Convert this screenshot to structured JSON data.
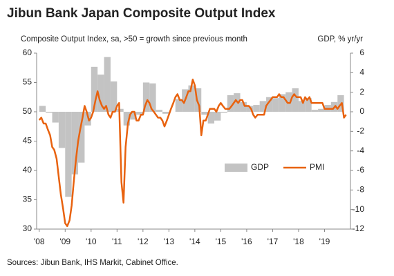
{
  "chart_data": {
    "type": "bar-line",
    "title": "Jibun Bank Japan Composite Output Index",
    "ylabel": "Composite Output Index, sa, >50 = growth since previous month",
    "y2label": "GDP, % yr/yr",
    "source": "Sources: Jibun Bank, IHS Markit, Cabinet Office.",
    "xlim": [
      2007.9,
      2020.0
    ],
    "xticks": [
      {
        "value": 2008,
        "label": "'08"
      },
      {
        "value": 2009,
        "label": "'09"
      },
      {
        "value": 2010,
        "label": "'10"
      },
      {
        "value": 2011,
        "label": "'11"
      },
      {
        "value": 2012,
        "label": "'12"
      },
      {
        "value": 2013,
        "label": "'13"
      },
      {
        "value": 2014,
        "label": "'14"
      },
      {
        "value": 2015,
        "label": "'15"
      },
      {
        "value": 2016,
        "label": "'16"
      },
      {
        "value": 2017,
        "label": "'17"
      },
      {
        "value": 2018,
        "label": "'18"
      },
      {
        "value": 2019,
        "label": "'19"
      }
    ],
    "ylim": [
      30,
      60
    ],
    "yticks": [
      30,
      35,
      40,
      45,
      50,
      55,
      60
    ],
    "y2lim": [
      -12,
      6
    ],
    "y2ticks": [
      -12,
      -10,
      -8,
      -6,
      -4,
      -2,
      0,
      2,
      4,
      6
    ],
    "legend": "right",
    "series": [
      {
        "name": "GDP",
        "color": "#c3c3c3",
        "kind": "bar",
        "axis": "y2",
        "x": [
          2008.125,
          2008.375,
          2008.625,
          2008.875,
          2009.125,
          2009.375,
          2009.625,
          2009.875,
          2010.125,
          2010.375,
          2010.625,
          2010.875,
          2011.125,
          2011.375,
          2011.625,
          2011.875,
          2012.125,
          2012.375,
          2012.625,
          2012.875,
          2013.125,
          2013.375,
          2013.625,
          2013.875,
          2014.125,
          2014.375,
          2014.625,
          2014.875,
          2015.125,
          2015.375,
          2015.625,
          2015.875,
          2016.125,
          2016.375,
          2016.625,
          2016.875,
          2017.125,
          2017.375,
          2017.625,
          2017.875,
          2018.125,
          2018.375,
          2018.625,
          2018.875,
          2019.125,
          2019.375,
          2019.625
        ],
        "values": [
          0.6,
          -0.1,
          -1.1,
          -3.7,
          -8.7,
          -6.4,
          -5.2,
          -1.4,
          4.6,
          3.8,
          5.6,
          3.1,
          0.3,
          -1.4,
          -0.8,
          -0.3,
          3.0,
          2.9,
          0.2,
          -0.2,
          0.0,
          1.3,
          2.3,
          2.7,
          2.4,
          -0.3,
          -1.2,
          -0.9,
          -0.1,
          1.7,
          1.9,
          1.0,
          0.6,
          0.7,
          1.1,
          1.5,
          1.4,
          1.8,
          2.0,
          2.4,
          1.1,
          1.4,
          0.2,
          0.3,
          0.7,
          1.0,
          1.7
        ]
      },
      {
        "name": "PMI",
        "color": "#e8620f",
        "kind": "line",
        "axis": "y",
        "x": [
          2008.0,
          2008.08,
          2008.17,
          2008.25,
          2008.33,
          2008.42,
          2008.5,
          2008.58,
          2008.67,
          2008.75,
          2008.83,
          2008.92,
          2009.0,
          2009.08,
          2009.17,
          2009.25,
          2009.33,
          2009.42,
          2009.5,
          2009.58,
          2009.67,
          2009.75,
          2009.83,
          2009.92,
          2010.0,
          2010.08,
          2010.17,
          2010.25,
          2010.33,
          2010.42,
          2010.5,
          2010.58,
          2010.67,
          2010.75,
          2010.83,
          2010.92,
          2011.0,
          2011.08,
          2011.17,
          2011.25,
          2011.33,
          2011.42,
          2011.5,
          2011.58,
          2011.67,
          2011.75,
          2011.83,
          2011.92,
          2012.0,
          2012.08,
          2012.17,
          2012.25,
          2012.33,
          2012.42,
          2012.5,
          2012.58,
          2012.67,
          2012.75,
          2012.83,
          2012.92,
          2013.0,
          2013.08,
          2013.17,
          2013.25,
          2013.33,
          2013.42,
          2013.5,
          2013.58,
          2013.67,
          2013.75,
          2013.83,
          2013.92,
          2014.0,
          2014.08,
          2014.17,
          2014.25,
          2014.33,
          2014.42,
          2014.5,
          2014.58,
          2014.67,
          2014.75,
          2014.83,
          2014.92,
          2015.0,
          2015.08,
          2015.17,
          2015.25,
          2015.33,
          2015.42,
          2015.5,
          2015.58,
          2015.67,
          2015.75,
          2015.83,
          2015.92,
          2016.0,
          2016.08,
          2016.17,
          2016.25,
          2016.33,
          2016.42,
          2016.5,
          2016.58,
          2016.67,
          2016.75,
          2016.83,
          2016.92,
          2017.0,
          2017.08,
          2017.17,
          2017.25,
          2017.33,
          2017.42,
          2017.5,
          2017.58,
          2017.67,
          2017.75,
          2017.83,
          2017.92,
          2018.0,
          2018.08,
          2018.17,
          2018.25,
          2018.33,
          2018.42,
          2018.5,
          2018.58,
          2018.67,
          2018.75,
          2018.83,
          2018.92,
          2019.0,
          2019.08,
          2019.17,
          2019.25,
          2019.33,
          2019.42,
          2019.5,
          2019.58,
          2019.67,
          2019.75,
          2019.83
        ],
        "values": [
          48.6,
          49.0,
          48.0,
          48.0,
          47.0,
          46.0,
          44.0,
          43.5,
          42.0,
          39.0,
          36.0,
          33.5,
          31.0,
          30.5,
          31.5,
          34.0,
          38.0,
          42.0,
          45.0,
          47.0,
          49.0,
          51.0,
          50.0,
          48.5,
          49.0,
          50.0,
          52.0,
          53.5,
          52.0,
          51.0,
          50.5,
          51.0,
          49.5,
          49.0,
          50.0,
          50.0,
          51.0,
          51.5,
          38.0,
          34.5,
          44.0,
          48.0,
          49.5,
          50.0,
          50.0,
          48.5,
          48.5,
          49.5,
          49.5,
          51.0,
          52.0,
          51.5,
          50.5,
          50.0,
          49.5,
          49.0,
          49.0,
          48.5,
          47.5,
          48.5,
          49.5,
          50.5,
          51.5,
          52.5,
          53.0,
          52.0,
          52.0,
          51.5,
          52.5,
          53.5,
          53.5,
          55.5,
          54.5,
          52.0,
          51.0,
          46.0,
          48.5,
          48.5,
          49.5,
          50.5,
          50.5,
          50.5,
          50.0,
          51.0,
          51.5,
          51.0,
          50.5,
          50.5,
          50.5,
          51.0,
          51.5,
          52.0,
          51.5,
          52.0,
          52.0,
          51.0,
          51.0,
          51.0,
          50.5,
          49.5,
          49.0,
          49.5,
          49.5,
          49.5,
          49.5,
          51.0,
          51.5,
          52.0,
          52.5,
          52.5,
          52.5,
          53.0,
          52.5,
          52.5,
          52.0,
          51.5,
          51.5,
          52.5,
          53.0,
          52.5,
          52.5,
          52.5,
          51.5,
          52.5,
          52.0,
          52.5,
          51.5,
          51.5,
          51.5,
          51.5,
          51.5,
          51.5,
          50.5,
          50.5,
          50.5,
          50.5,
          50.5,
          51.0,
          50.5,
          51.0,
          51.5,
          49.0,
          49.5
        ]
      }
    ]
  }
}
